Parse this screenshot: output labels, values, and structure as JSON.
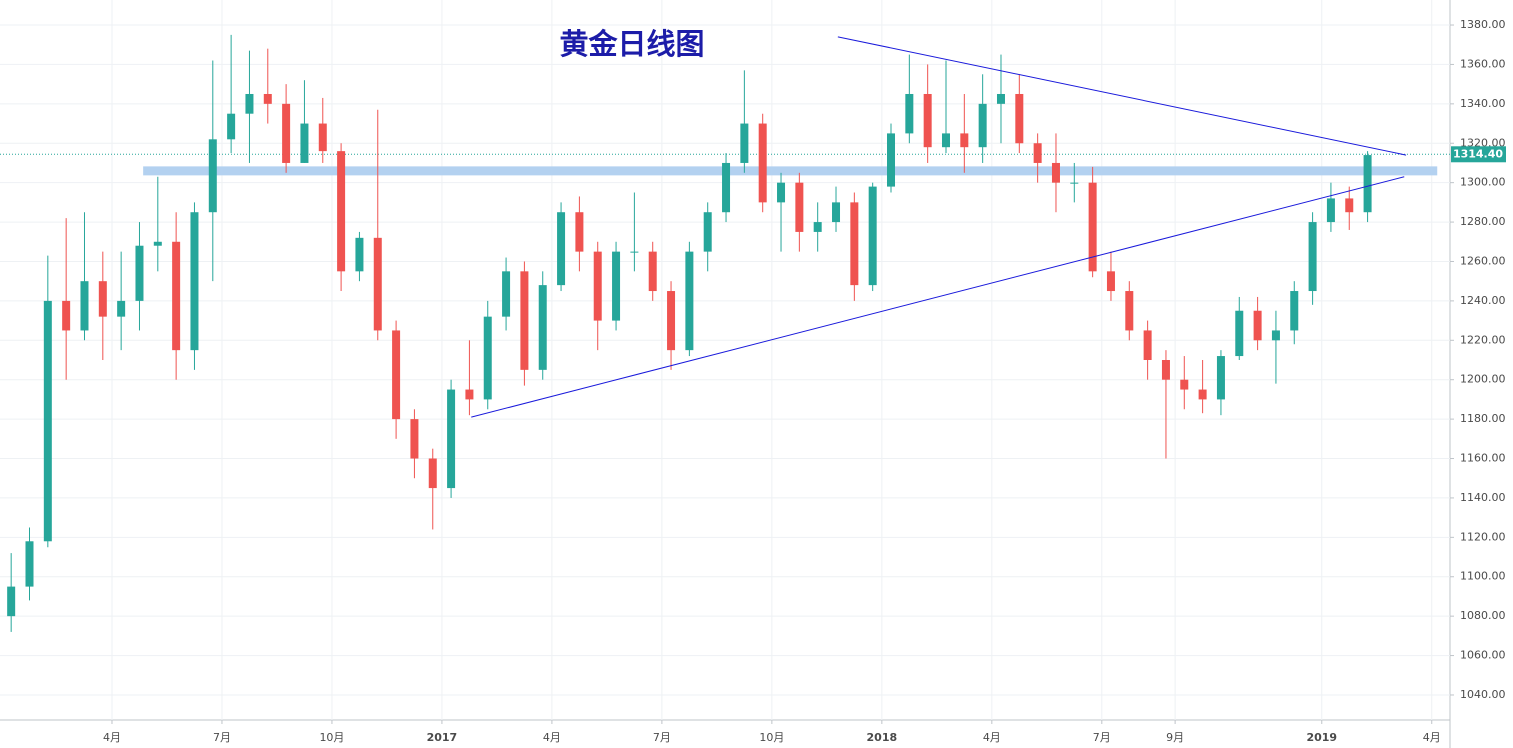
{
  "chart_data": {
    "type": "candlestick",
    "title": "黄金日线图",
    "categories": [
      null,
      null,
      null,
      null,
      null,
      null,
      "4月",
      null,
      null,
      null,
      null,
      null,
      "7月",
      null,
      null,
      null,
      null,
      null,
      "10月",
      null,
      null,
      null,
      null,
      null,
      "2017",
      null,
      null,
      null,
      null,
      null,
      "4月",
      null,
      null,
      null,
      null,
      null,
      "7月",
      null,
      null,
      null,
      null,
      null,
      "10月",
      null,
      null,
      null,
      null,
      null,
      "2018",
      null,
      null,
      null,
      null,
      null,
      "4月",
      null,
      null,
      null,
      null,
      null,
      "7月",
      null,
      null,
      null,
      "9月",
      null,
      null,
      null,
      null,
      null,
      null,
      null,
      "2019",
      null,
      null,
      null,
      null,
      null,
      "4月"
    ],
    "open": [
      1080,
      1095,
      1118,
      1240,
      1225,
      1250,
      1232,
      1240,
      1268,
      1270,
      1215,
      1285,
      1322,
      1335,
      1345,
      1340,
      1310,
      1330,
      1316,
      1255,
      1272,
      1225,
      1180,
      1160,
      1145,
      1195,
      1190,
      1232,
      1255,
      1205,
      1248,
      1285,
      1265,
      1230,
      1265,
      1265,
      1245,
      1215,
      1265,
      1285,
      1310,
      1330,
      1290,
      1300,
      1275,
      1280,
      1290,
      1248,
      1298,
      1325,
      1345,
      1318,
      1325,
      1318,
      1340,
      1345,
      1320,
      1310,
      1300,
      1300,
      1255,
      1245,
      1225,
      1210,
      1200,
      1195,
      1190,
      1212,
      1235,
      1220,
      1225,
      1245,
      1280,
      1292,
      1285,
      null,
      null,
      null,
      null
    ],
    "high": [
      1112,
      1125,
      1263,
      1282,
      1285,
      1265,
      1265,
      1280,
      1303,
      1285,
      1290,
      1362,
      1375,
      1367,
      1368,
      1350,
      1352,
      1343,
      1320,
      1275,
      1337,
      1230,
      1185,
      1165,
      1200,
      1220,
      1240,
      1262,
      1260,
      1255,
      1290,
      1293,
      1270,
      1270,
      1295,
      1270,
      1250,
      1270,
      1290,
      1315,
      1357,
      1335,
      1305,
      1305,
      1290,
      1298,
      1295,
      1300,
      1330,
      1365,
      1360,
      1362,
      1345,
      1355,
      1365,
      1355,
      1325,
      1325,
      1310,
      1308,
      1265,
      1250,
      1230,
      1215,
      1212,
      1210,
      1215,
      1242,
      1242,
      1235,
      1250,
      1285,
      1300,
      1298,
      1316,
      null,
      null,
      null,
      null
    ],
    "low": [
      1072,
      1088,
      1115,
      1200,
      1220,
      1210,
      1215,
      1225,
      1255,
      1200,
      1205,
      1250,
      1315,
      1310,
      1330,
      1305,
      1310,
      1310,
      1245,
      1250,
      1220,
      1170,
      1150,
      1124,
      1140,
      1182,
      1185,
      1225,
      1197,
      1200,
      1245,
      1255,
      1215,
      1225,
      1255,
      1240,
      1205,
      1212,
      1255,
      1280,
      1305,
      1285,
      1265,
      1265,
      1265,
      1275,
      1240,
      1245,
      1295,
      1320,
      1310,
      1315,
      1305,
      1310,
      1320,
      1315,
      1300,
      1285,
      1290,
      1252,
      1240,
      1220,
      1200,
      1160,
      1185,
      1183,
      1182,
      1210,
      1215,
      1198,
      1218,
      1238,
      1275,
      1276,
      1280,
      null,
      null,
      null,
      null
    ],
    "close": [
      1095,
      1118,
      1240,
      1225,
      1250,
      1232,
      1240,
      1268,
      1270,
      1215,
      1285,
      1322,
      1335,
      1345,
      1340,
      1310,
      1330,
      1316,
      1255,
      1272,
      1225,
      1180,
      1160,
      1145,
      1195,
      1190,
      1232,
      1255,
      1205,
      1248,
      1285,
      1265,
      1230,
      1265,
      1265,
      1245,
      1215,
      1265,
      1285,
      1310,
      1330,
      1290,
      1300,
      1275,
      1280,
      1290,
      1248,
      1298,
      1325,
      1345,
      1318,
      1325,
      1318,
      1340,
      1345,
      1320,
      1310,
      1300,
      1300,
      1255,
      1245,
      1225,
      1210,
      1200,
      1195,
      1190,
      1212,
      1235,
      1220,
      1225,
      1245,
      1280,
      1292,
      1285,
      1314,
      null,
      null,
      null,
      null
    ],
    "up_color": "#26a69a",
    "down_color": "#ef5350",
    "last_price": {
      "value": 1314.4,
      "label": "1314.40"
    },
    "support_zone": {
      "value": 1306,
      "x": [
        7.7,
        78.3
      ],
      "color": "#b3d1f0"
    },
    "trend_lines": [
      {
        "x": [
          45.6,
          76.6
        ],
        "y": [
          1374,
          1314
        ],
        "color": "#1a1adb"
      },
      {
        "x": [
          25.6,
          76.5
        ],
        "y": [
          1181,
          1303
        ],
        "color": "#1a1adb"
      }
    ],
    "ylim": [
      1027.3,
      1392.7
    ],
    "yticks": [
      {
        "value": 1040,
        "label": "1040.00"
      },
      {
        "value": 1060,
        "label": "1060.00"
      },
      {
        "value": 1080,
        "label": "1080.00"
      },
      {
        "value": 1100,
        "label": "1100.00"
      },
      {
        "value": 1120,
        "label": "1120.00"
      },
      {
        "value": 1140,
        "label": "1140.00"
      },
      {
        "value": 1160,
        "label": "1160.00"
      },
      {
        "value": 1180,
        "label": "1180.00"
      },
      {
        "value": 1200,
        "label": "1200.00"
      },
      {
        "value": 1220,
        "label": "1220.00"
      },
      {
        "value": 1240,
        "label": "1240.00"
      },
      {
        "value": 1260,
        "label": "1260.00"
      },
      {
        "value": 1280,
        "label": "1280.00"
      },
      {
        "value": 1300,
        "label": "1300.00"
      },
      {
        "value": 1320,
        "label": "1320.00"
      },
      {
        "value": 1340,
        "label": "1340.00"
      },
      {
        "value": 1360,
        "label": "1360.00"
      },
      {
        "value": 1380,
        "label": "1380.00"
      }
    ],
    "grid": true
  }
}
